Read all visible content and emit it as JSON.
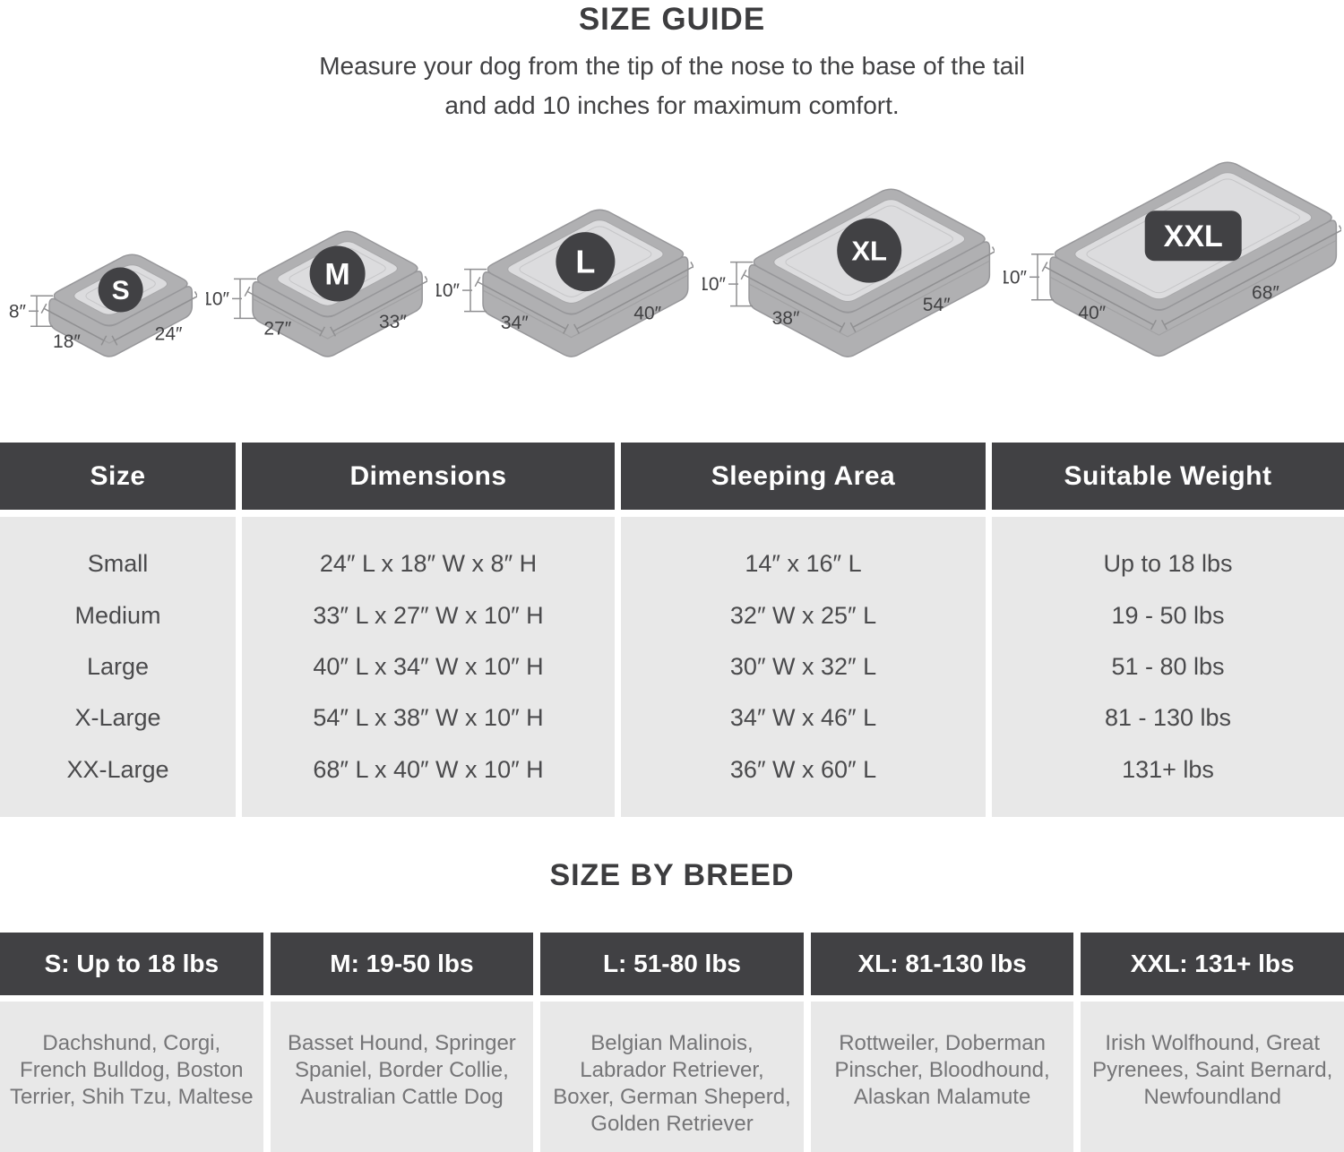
{
  "header": {
    "title": "SIZE GUIDE",
    "subtitle_line1": "Measure your dog from the tip of the nose to the base of the tail",
    "subtitle_line2": "and add 10 inches for maximum comfort."
  },
  "beds": [
    {
      "code": "S",
      "height_label": "8″",
      "width_label": "18″",
      "length_label": "24″"
    },
    {
      "code": "M",
      "height_label": "10″",
      "width_label": "27″",
      "length_label": "33″"
    },
    {
      "code": "L",
      "height_label": "10″",
      "width_label": "34″",
      "length_label": "40″"
    },
    {
      "code": "XL",
      "height_label": "10″",
      "width_label": "38″",
      "length_label": "54″"
    },
    {
      "code": "XXL",
      "height_label": "10″",
      "width_label": "40″",
      "length_label": "68″"
    }
  ],
  "size_table": {
    "headers": [
      "Size",
      "Dimensions",
      "Sleeping Area",
      "Suitable Weight"
    ],
    "rows": [
      {
        "size": "Small",
        "dimensions": "24″ L x 18″ W x 8″ H",
        "sleeping": "14″ x 16″ L",
        "weight": "Up to 18 lbs"
      },
      {
        "size": "Medium",
        "dimensions": "33″ L x 27″ W x 10″ H",
        "sleeping": "32″ W x 25″ L",
        "weight": "19 - 50 lbs"
      },
      {
        "size": "Large",
        "dimensions": "40″ L x 34″ W x 10″ H",
        "sleeping": "30″ W x 32″ L",
        "weight": "51 - 80 lbs"
      },
      {
        "size": "X-Large",
        "dimensions": "54″ L x 38″ W x 10″ H",
        "sleeping": "34″ W x 46″ L",
        "weight": "81 - 130 lbs"
      },
      {
        "size": "XX-Large",
        "dimensions": "68″ L x 40″ W x 10″ H",
        "sleeping": "36″ W x 60″ L",
        "weight": "131+ lbs"
      }
    ]
  },
  "breed_section": {
    "title": "SIZE BY BREED",
    "columns": [
      {
        "header": "S: Up to 18 lbs",
        "breeds": "Dachshund, Corgi, French Bulldog, Boston Terrier, Shih Tzu, Maltese"
      },
      {
        "header": "M: 19-50 lbs",
        "breeds": "Basset Hound, Springer Spaniel, Border Collie, Australian Cattle Dog"
      },
      {
        "header": "L: 51-80 lbs",
        "breeds": "Belgian Malinois, Labrador Retriever, Boxer, German Sheperd, Golden Retriever"
      },
      {
        "header": "XL: 81-130 lbs",
        "breeds": "Rottweiler, Doberman Pinscher, Bloodhound, Alaskan Malamute"
      },
      {
        "header": "XXL: 131+ lbs",
        "breeds": "Irish Wolfhound, Great Pyrenees, Saint Bernard, Newfoundland"
      }
    ]
  },
  "colors": {
    "header_bar": "#414144",
    "cell_bg": "#e8e8e8",
    "bed_rim": "#b0b0b2",
    "bed_cushion": "#dcdcde",
    "badge": "#414144",
    "text_dark": "#3d3d3f",
    "text_body": "#4a4a4c",
    "text_breeds": "#757577"
  }
}
